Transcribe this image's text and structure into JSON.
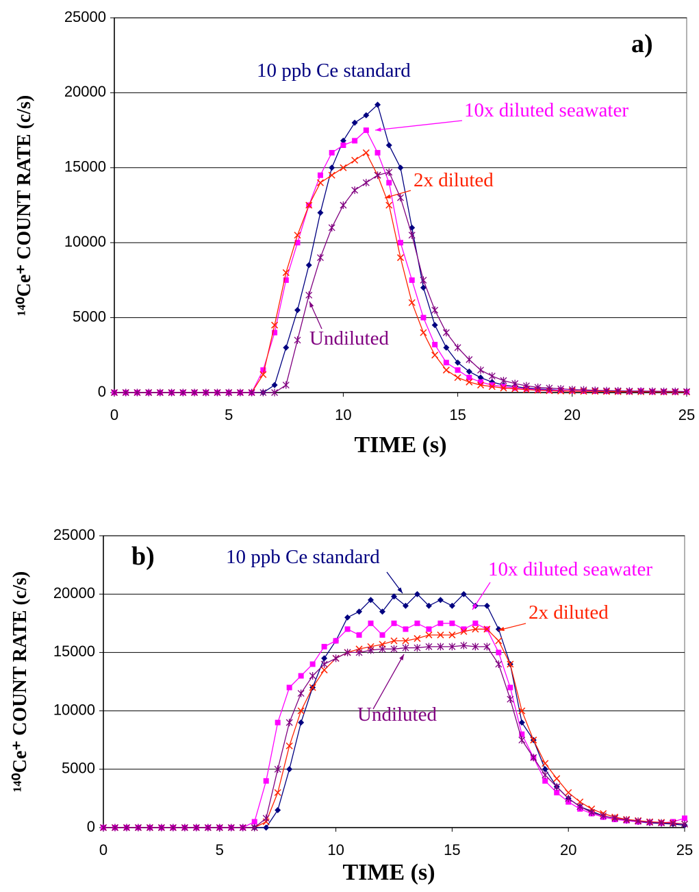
{
  "chart_data": [
    {
      "type": "line",
      "label": "a)",
      "xlabel": "TIME (s)",
      "ylabel": "¹⁴⁰Ce⁺ COUNT RATE (c/s)",
      "xlim": [
        0,
        25
      ],
      "ylim": [
        0,
        25000
      ],
      "xticks": [
        0,
        5,
        10,
        15,
        20,
        25
      ],
      "yticks": [
        0,
        5000,
        10000,
        15000,
        20000,
        25000
      ],
      "grid": true,
      "x": [
        0,
        0.5,
        1,
        1.5,
        2,
        2.5,
        3,
        3.5,
        4,
        4.5,
        5,
        5.5,
        6,
        6.5,
        7,
        7.5,
        8,
        8.5,
        9,
        9.5,
        10,
        10.5,
        11,
        11.5,
        12,
        12.5,
        13,
        13.5,
        14,
        14.5,
        15,
        15.5,
        16,
        16.5,
        17,
        17.5,
        18,
        18.5,
        19,
        19.5,
        20,
        20.5,
        21,
        21.5,
        22,
        22.5,
        23,
        23.5,
        24,
        24.5,
        25
      ],
      "series": [
        {
          "name": "10 ppb Ce standard",
          "color": "#000080",
          "marker": "diamond",
          "values": [
            0,
            0,
            0,
            0,
            0,
            0,
            0,
            0,
            0,
            0,
            0,
            0,
            0,
            0,
            500,
            3000,
            5500,
            8500,
            12000,
            15000,
            16800,
            18000,
            18500,
            19200,
            16500,
            15000,
            11000,
            7000,
            4500,
            3000,
            2000,
            1400,
            1000,
            700,
            500,
            400,
            300,
            250,
            200,
            150,
            120,
            100,
            100,
            80,
            80,
            70,
            60,
            60,
            50,
            50,
            50
          ]
        },
        {
          "name": "10x diluted seawater",
          "color": "#ff00ff",
          "marker": "square",
          "values": [
            0,
            0,
            0,
            0,
            0,
            0,
            0,
            0,
            0,
            0,
            0,
            0,
            0,
            1500,
            4000,
            7500,
            10000,
            12500,
            14500,
            16000,
            16500,
            16800,
            17500,
            16000,
            14000,
            10000,
            7500,
            5000,
            3200,
            2000,
            1500,
            1000,
            700,
            500,
            400,
            300,
            250,
            200,
            150,
            150,
            120,
            100,
            100,
            90,
            80,
            70,
            100,
            60,
            50,
            50,
            50
          ]
        },
        {
          "name": "2x diluted",
          "color": "#ff2200",
          "marker": "x",
          "values": [
            0,
            0,
            0,
            0,
            0,
            0,
            0,
            0,
            0,
            0,
            0,
            0,
            0,
            1200,
            4500,
            8000,
            10500,
            12500,
            14000,
            14500,
            15000,
            15500,
            16000,
            14500,
            12500,
            9000,
            6000,
            4000,
            2500,
            1500,
            1000,
            700,
            500,
            400,
            300,
            250,
            200,
            150,
            120,
            100,
            100,
            80,
            80,
            70,
            60,
            60,
            50,
            50,
            40,
            40,
            40
          ]
        },
        {
          "name": "Undiluted",
          "color": "#800080",
          "marker": "star",
          "values": [
            0,
            0,
            0,
            0,
            0,
            0,
            0,
            0,
            0,
            0,
            0,
            0,
            0,
            0,
            0,
            500,
            3500,
            6500,
            9000,
            11000,
            12500,
            13500,
            14000,
            14500,
            14700,
            13000,
            10500,
            7500,
            5500,
            4000,
            3000,
            2200,
            1500,
            1100,
            800,
            600,
            450,
            350,
            300,
            250,
            200,
            180,
            150,
            130,
            120,
            100,
            100,
            90,
            80,
            80,
            70
          ]
        }
      ]
    },
    {
      "type": "line",
      "label": "b)",
      "xlabel": "TIME (s)",
      "ylabel": "¹⁴⁰Ce⁺ COUNT RATE (c/s)",
      "xlim": [
        0,
        25
      ],
      "ylim": [
        0,
        25000
      ],
      "xticks": [
        0,
        5,
        10,
        15,
        20,
        25
      ],
      "yticks": [
        0,
        5000,
        10000,
        15000,
        20000,
        25000
      ],
      "grid": true,
      "x": [
        0,
        0.5,
        1,
        1.5,
        2,
        2.5,
        3,
        3.5,
        4,
        4.5,
        5,
        5.5,
        6,
        6.5,
        7,
        7.5,
        8,
        8.5,
        9,
        9.5,
        10,
        10.5,
        11,
        11.5,
        12,
        12.5,
        13,
        13.5,
        14,
        14.5,
        15,
        15.5,
        16,
        16.5,
        17,
        17.5,
        18,
        18.5,
        19,
        19.5,
        20,
        20.5,
        21,
        21.5,
        22,
        22.5,
        23,
        23.5,
        24,
        24.5,
        25
      ],
      "series": [
        {
          "name": "10 ppb Ce standard",
          "color": "#000080",
          "marker": "diamond",
          "values": [
            0,
            0,
            0,
            0,
            0,
            0,
            0,
            0,
            0,
            0,
            0,
            0,
            0,
            0,
            0,
            1500,
            5000,
            9000,
            12000,
            14500,
            16000,
            18000,
            18500,
            19500,
            18500,
            19800,
            19000,
            20000,
            19000,
            19500,
            19000,
            20000,
            19000,
            19000,
            17000,
            14000,
            9000,
            7500,
            5000,
            3500,
            2500,
            1800,
            1400,
            1000,
            800,
            600,
            500,
            400,
            350,
            300,
            200
          ]
        },
        {
          "name": "10x diluted seawater",
          "color": "#ff00ff",
          "marker": "square",
          "values": [
            0,
            0,
            0,
            0,
            0,
            0,
            0,
            0,
            0,
            0,
            0,
            0,
            0,
            500,
            4000,
            9000,
            12000,
            13000,
            14000,
            15500,
            16000,
            17000,
            16500,
            17500,
            16500,
            17500,
            17000,
            17500,
            17000,
            17500,
            17500,
            17000,
            17500,
            17000,
            15000,
            12000,
            8000,
            6000,
            4000,
            3000,
            2200,
            1600,
            1200,
            900,
            700,
            600,
            500,
            450,
            400,
            500,
            800
          ]
        },
        {
          "name": "2x diluted",
          "color": "#ff2200",
          "marker": "x",
          "values": [
            0,
            0,
            0,
            0,
            0,
            0,
            0,
            0,
            0,
            0,
            0,
            0,
            0,
            0,
            500,
            3000,
            7000,
            10000,
            12000,
            13500,
            14500,
            15000,
            15300,
            15500,
            15700,
            16000,
            16000,
            16200,
            16500,
            16500,
            16500,
            16800,
            17000,
            17000,
            16000,
            14000,
            10000,
            7500,
            5500,
            4200,
            3000,
            2200,
            1600,
            1200,
            900,
            700,
            600,
            500,
            450,
            400,
            300
          ]
        },
        {
          "name": "Undiluted",
          "color": "#800080",
          "marker": "star",
          "values": [
            0,
            0,
            0,
            0,
            0,
            0,
            0,
            0,
            0,
            0,
            0,
            0,
            0,
            0,
            800,
            5000,
            9000,
            11500,
            13000,
            14000,
            14500,
            15000,
            15000,
            15200,
            15300,
            15300,
            15400,
            15400,
            15500,
            15500,
            15500,
            15600,
            15500,
            15500,
            14000,
            11000,
            7500,
            6000,
            4500,
            3500,
            2500,
            1800,
            1300,
            1000,
            800,
            650,
            550,
            450,
            400,
            350,
            300
          ]
        }
      ]
    }
  ]
}
